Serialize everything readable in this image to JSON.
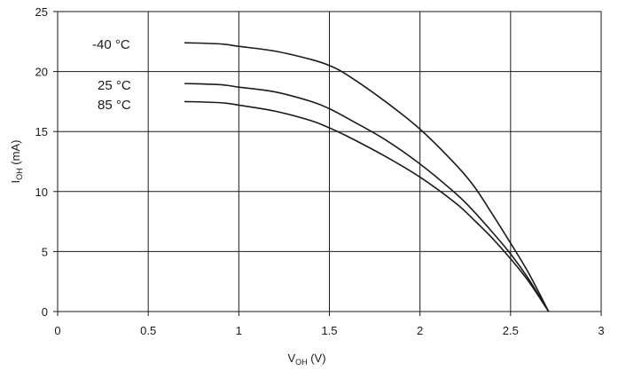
{
  "chart_data": {
    "type": "line",
    "xlabel": {
      "main": "V",
      "sub": "OH",
      "unit": " (V)"
    },
    "ylabel": {
      "main": "I",
      "sub": "OH",
      "unit": " (mA)"
    },
    "xlim": [
      0,
      3
    ],
    "ylim": [
      0,
      25
    ],
    "x_ticks": [
      "0",
      "0.5",
      "1",
      "1.5",
      "2",
      "2.5",
      "3"
    ],
    "y_ticks": [
      "0",
      "5",
      "10",
      "15",
      "20",
      "25"
    ],
    "grid": true,
    "series": [
      {
        "name": "-40 °C",
        "points": [
          [
            0.7,
            22.4
          ],
          [
            0.9,
            22.3
          ],
          [
            1.0,
            22.1
          ],
          [
            1.2,
            21.7
          ],
          [
            1.4,
            21.0
          ],
          [
            1.5,
            20.5
          ],
          [
            1.6,
            19.7
          ],
          [
            1.8,
            17.6
          ],
          [
            2.0,
            15.2
          ],
          [
            2.2,
            12.2
          ],
          [
            2.3,
            10.4
          ],
          [
            2.4,
            8.1
          ],
          [
            2.5,
            5.7
          ],
          [
            2.6,
            3.2
          ],
          [
            2.71,
            0
          ]
        ]
      },
      {
        "name": "25 °C",
        "points": [
          [
            0.7,
            19.0
          ],
          [
            0.9,
            18.9
          ],
          [
            1.0,
            18.7
          ],
          [
            1.2,
            18.3
          ],
          [
            1.4,
            17.5
          ],
          [
            1.5,
            16.9
          ],
          [
            1.6,
            16.1
          ],
          [
            1.8,
            14.4
          ],
          [
            2.0,
            12.3
          ],
          [
            2.2,
            9.8
          ],
          [
            2.3,
            8.3
          ],
          [
            2.4,
            6.6
          ],
          [
            2.5,
            4.8
          ],
          [
            2.6,
            2.7
          ],
          [
            2.71,
            0
          ]
        ]
      },
      {
        "name": "85 °C",
        "points": [
          [
            0.7,
            17.5
          ],
          [
            0.9,
            17.4
          ],
          [
            1.0,
            17.2
          ],
          [
            1.2,
            16.7
          ],
          [
            1.4,
            15.9
          ],
          [
            1.5,
            15.3
          ],
          [
            1.6,
            14.6
          ],
          [
            1.8,
            13.0
          ],
          [
            2.0,
            11.2
          ],
          [
            2.2,
            9.0
          ],
          [
            2.3,
            7.6
          ],
          [
            2.4,
            6.1
          ],
          [
            2.5,
            4.4
          ],
          [
            2.6,
            2.5
          ],
          [
            2.71,
            0
          ]
        ]
      }
    ]
  }
}
